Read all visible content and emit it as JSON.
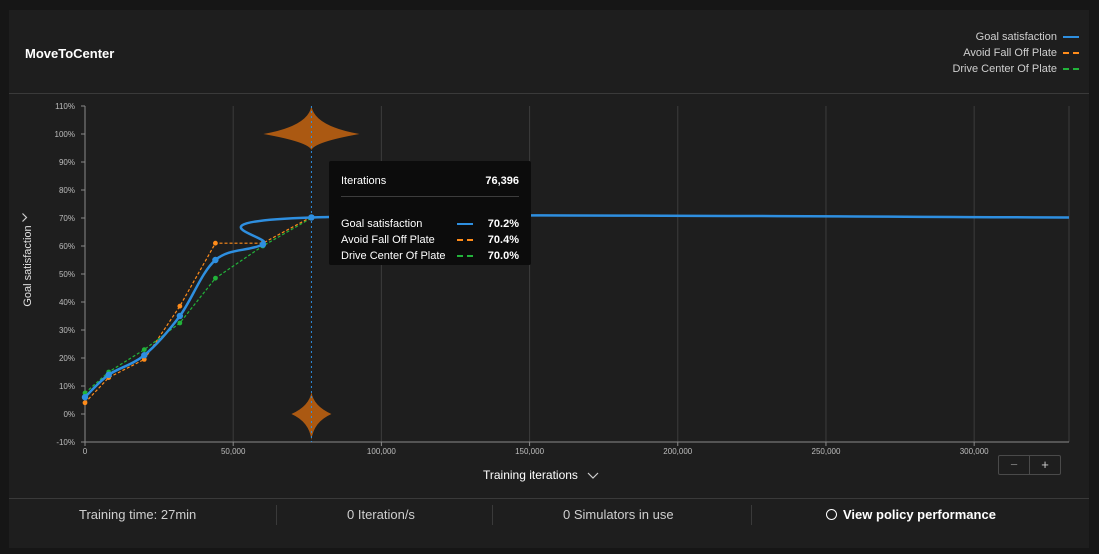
{
  "title": "MoveToCenter",
  "legend": [
    {
      "label": "Goal satisfaction",
      "color": "#2e8fe0",
      "dash": "solid"
    },
    {
      "label": "Avoid Fall Off Plate",
      "color": "#ff8c1a",
      "dash": "dashed"
    },
    {
      "label": "Drive Center Of Plate",
      "color": "#22b33a",
      "dash": "dashed"
    }
  ],
  "y_axis_label": "Goal satisfaction",
  "x_axis_label": "Training iterations",
  "zoom": {
    "minus": "−",
    "plus": "+"
  },
  "tooltip": {
    "header_label": "Iterations",
    "header_value": "76,396",
    "rows": [
      {
        "name": "Goal satisfaction",
        "value": "70.2%",
        "color": "#2e8fe0"
      },
      {
        "name": "Avoid Fall Off Plate",
        "value": "70.4%",
        "color": "#ff8c1a"
      },
      {
        "name": "Drive Center Of Plate",
        "value": "70.0%",
        "color": "#22b33a"
      }
    ]
  },
  "footer": {
    "training_time": "Training time: 27min",
    "iteration_rate": "0 Iteration/s",
    "simulators": "0 Simulators in use",
    "policy_link": "View policy performance"
  },
  "chart_data": {
    "type": "line",
    "title": "MoveToCenter",
    "xlabel": "Training iterations",
    "ylabel": "Goal satisfaction",
    "xlim": [
      0,
      332000
    ],
    "ylim": [
      -10,
      110
    ],
    "x_ticks": [
      0,
      50000,
      100000,
      150000,
      200000,
      250000,
      300000
    ],
    "x_tick_labels": [
      "0",
      "50,000",
      "100,000",
      "150,000",
      "200,000",
      "250,000",
      "300,000"
    ],
    "y_ticks": [
      -10,
      0,
      10,
      20,
      30,
      40,
      50,
      60,
      70,
      80,
      90,
      100,
      110
    ],
    "y_tick_labels": [
      "-10%",
      "0%",
      "10%",
      "20%",
      "30%",
      "40%",
      "50%",
      "60%",
      "70%",
      "80%",
      "90%",
      "100%",
      "110%"
    ],
    "cursor_x": 76396,
    "series": [
      {
        "name": "Goal satisfaction",
        "color": "#2e8fe0",
        "style": "solid",
        "x": [
          0,
          8000,
          20000,
          32000,
          44000,
          60000,
          76396,
          332000
        ],
        "y": [
          6,
          14,
          21,
          35,
          55,
          60.5,
          70.2,
          70.2
        ],
        "markers": [
          0,
          8000,
          20000,
          32000,
          44000,
          60000,
          76396
        ]
      },
      {
        "name": "Avoid Fall Off Plate",
        "color": "#ff8c1a",
        "style": "dashed",
        "x": [
          0,
          8000,
          20000,
          32000,
          44000,
          60000,
          76396
        ],
        "y": [
          4,
          13,
          19.5,
          38.5,
          61,
          61,
          70.4
        ],
        "markers": [
          0,
          8000,
          20000,
          32000,
          44000,
          60000
        ]
      },
      {
        "name": "Drive Center Of Plate",
        "color": "#22b33a",
        "style": "dashed",
        "x": [
          0,
          8000,
          20000,
          32000,
          44000,
          60000,
          76396
        ],
        "y": [
          7.5,
          15,
          23,
          32.5,
          48.5,
          60,
          70.0
        ],
        "markers": [
          0,
          8000,
          20000,
          32000,
          44000,
          60000
        ]
      }
    ],
    "distribution_markers": [
      {
        "x": 76396,
        "y": 100,
        "color": "#b35d12"
      },
      {
        "x": 76396,
        "y": 0,
        "color": "#b35d12"
      }
    ]
  }
}
